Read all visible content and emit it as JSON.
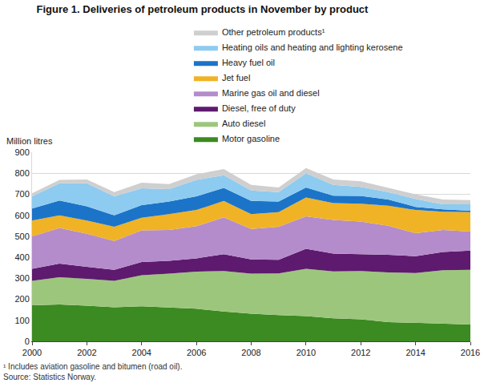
{
  "chart_data": {
    "type": "area",
    "title": "Figure 1. Deliveries of petroleum products in November by product",
    "y_label": "Million litres",
    "footnotes": [
      "¹ Includes aviation gasoline and bitumen (road oil).",
      "Source: Statistics Norway."
    ],
    "x": [
      2000,
      2001,
      2002,
      2003,
      2004,
      2005,
      2006,
      2007,
      2008,
      2009,
      2010,
      2011,
      2012,
      2013,
      2014,
      2015,
      2016
    ],
    "series": [
      {
        "name": "Motor gasoline",
        "color": "#3b8a22",
        "values": [
          172,
          175,
          170,
          162,
          167,
          160,
          155,
          142,
          132,
          125,
          120,
          110,
          105,
          92,
          88,
          85,
          80
        ]
      },
      {
        "name": "Auto diesel",
        "color": "#9dc67d",
        "values": [
          116,
          130,
          127,
          126,
          148,
          162,
          177,
          193,
          190,
          198,
          225,
          223,
          230,
          236,
          237,
          253,
          260
        ]
      },
      {
        "name": "Diesel, free of duty",
        "color": "#5e1a6e",
        "values": [
          57,
          65,
          58,
          52,
          63,
          61,
          63,
          80,
          68,
          65,
          95,
          85,
          80,
          84,
          80,
          87,
          92
        ]
      },
      {
        "name": "Marine gas oil and diesel",
        "color": "#b48ccb",
        "values": [
          155,
          170,
          157,
          138,
          150,
          147,
          153,
          175,
          145,
          157,
          155,
          160,
          155,
          138,
          110,
          105,
          90
        ]
      },
      {
        "name": "Jet fuel",
        "color": "#f0b325",
        "values": [
          75,
          60,
          63,
          67,
          60,
          75,
          77,
          78,
          70,
          70,
          90,
          80,
          85,
          95,
          110,
          87,
          93
        ]
      },
      {
        "name": "Heavy fuel oil",
        "color": "#1c74c8",
        "values": [
          57,
          70,
          68,
          55,
          60,
          60,
          65,
          62,
          63,
          50,
          47,
          35,
          37,
          30,
          15,
          11,
          7
        ]
      },
      {
        "name": "Heating oils and heating and lighting kerosene",
        "color": "#8ecbf0",
        "values": [
          58,
          82,
          109,
          90,
          80,
          60,
          78,
          60,
          50,
          45,
          68,
          52,
          43,
          35,
          38,
          24,
          30
        ]
      },
      {
        "name": "Other petroleum products¹",
        "color": "#cfcfcf",
        "values": [
          15,
          16,
          18,
          20,
          27,
          23,
          27,
          30,
          27,
          22,
          25,
          25,
          27,
          20,
          22,
          23,
          20
        ]
      }
    ],
    "stacked": true,
    "xlim": [
      2000,
      2016
    ],
    "xticks": [
      2000,
      2002,
      2004,
      2006,
      2008,
      2010,
      2012,
      2014,
      2016
    ],
    "ylim": [
      0,
      900
    ],
    "yticks": [
      0,
      100,
      200,
      300,
      400,
      500,
      600,
      700,
      800,
      900
    ],
    "grid": true,
    "legend": "top"
  }
}
